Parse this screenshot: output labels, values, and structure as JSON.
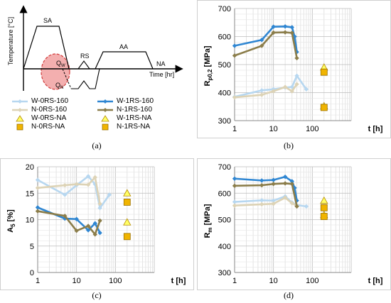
{
  "colors": {
    "W_RS160": "#b7d7f0",
    "W_RS1": "#2f86d2",
    "N_RS160": "#ddd3b6",
    "N_RS1": "#8b7d4a",
    "W_NA_marker": "#ffff66",
    "N_NA_marker": "#f0b400",
    "grid": "#d0d0d0",
    "zone": "#e96e6e"
  },
  "panel_a": {
    "caption": "(a)",
    "ylabel": "Temperature [°C]",
    "xlabel": "Time [hr]",
    "labels": {
      "SA": "SA",
      "RS": "RS",
      "AA": "AA",
      "NA": "NA",
      "Qw": "Q",
      "Qw_sub": "W",
      "QN": "Q",
      "QN_sub": "N"
    }
  },
  "legend": [
    {
      "label": "W-0RS-160",
      "key": "W_RS160",
      "kind": "line"
    },
    {
      "label": "W-1RS-160",
      "key": "W_RS1",
      "kind": "line"
    },
    {
      "label": "N-0RS-160",
      "key": "N_RS160",
      "kind": "line"
    },
    {
      "label": "N-1RS-160",
      "key": "N_RS1",
      "kind": "line"
    },
    {
      "label": "W-0RS-NA",
      "key": "W_NA_marker",
      "kind": "triangle"
    },
    {
      "label": "W-1RS-NA",
      "key": "W_NA_marker",
      "kind": "triangle"
    },
    {
      "label": "N-0RS-NA",
      "key": "N_NA_marker",
      "kind": "square"
    },
    {
      "label": "N-1RS-NA",
      "key": "N_NA_marker",
      "kind": "square"
    }
  ],
  "chart_data": [
    {
      "panel": "b",
      "caption": "(b)",
      "type": "line",
      "ylabel_main": "R",
      "ylabel_sub": "p0,2",
      "ylabel_unit": " [MPa]",
      "xlabel": "t [h]",
      "xscale": "log",
      "xlim": [
        1,
        1000
      ],
      "ylim": [
        300,
        700
      ],
      "xticks": [
        1,
        10,
        100
      ],
      "xtick_labels": [
        "1",
        "10",
        "100"
      ],
      "yticks": [
        300,
        400,
        500,
        600,
        700
      ],
      "ytick_labels": [
        "300",
        "400",
        "500",
        "600",
        "700"
      ],
      "series": [
        {
          "name": "W-0RS-160",
          "color_key": "W_RS160",
          "x": [
            1,
            5,
            10,
            20,
            30,
            40,
            70
          ],
          "y": [
            385,
            408,
            412,
            418,
            420,
            460,
            412
          ]
        },
        {
          "name": "W-1RS-160",
          "color_key": "W_RS1",
          "x": [
            1,
            5,
            10,
            20,
            30,
            35,
            40
          ],
          "y": [
            567,
            588,
            635,
            636,
            633,
            600,
            545
          ]
        },
        {
          "name": "N-0RS-160",
          "color_key": "N_RS160",
          "x": [
            1,
            5,
            10,
            20,
            30,
            40
          ],
          "y": [
            383,
            392,
            405,
            420,
            405,
            430
          ]
        },
        {
          "name": "N-1RS-160",
          "color_key": "N_RS1",
          "x": [
            1,
            5,
            10,
            20,
            30,
            40
          ],
          "y": [
            532,
            567,
            614,
            615,
            613,
            523
          ]
        }
      ],
      "na_points": [
        {
          "name": "W-0RS-NA",
          "shape": "triangle",
          "x": 200,
          "y": 490
        },
        {
          "name": "W-1RS-NA",
          "shape": "triangle",
          "x": 200,
          "y": 352
        },
        {
          "name": "N-0RS-NA",
          "shape": "square",
          "x": 200,
          "y": 473
        },
        {
          "name": "N-1RS-NA",
          "shape": "square",
          "x": 200,
          "y": 347
        }
      ]
    },
    {
      "panel": "c",
      "caption": "(c)",
      "type": "line",
      "ylabel_main": "A",
      "ylabel_sub": "5",
      "ylabel_unit": " [%]",
      "xlabel": "t [h]",
      "xscale": "log",
      "xlim": [
        1,
        1000
      ],
      "ylim": [
        0,
        20
      ],
      "xticks": [
        1,
        10,
        100
      ],
      "xtick_labels": [
        "1",
        "10",
        "100"
      ],
      "yticks": [
        0,
        5,
        10,
        15,
        20
      ],
      "ytick_labels": [
        "0",
        "5",
        "10",
        "15",
        "20"
      ],
      "series": [
        {
          "name": "W-0RS-160",
          "color_key": "W_RS160",
          "x": [
            1,
            5,
            10,
            20,
            30,
            40,
            70
          ],
          "y": [
            17.5,
            14.7,
            16.5,
            18.2,
            16.7,
            12.2,
            14.7
          ]
        },
        {
          "name": "W-1RS-160",
          "color_key": "W_RS1",
          "x": [
            1,
            5,
            10,
            20,
            30,
            40
          ],
          "y": [
            12.3,
            10.2,
            10.1,
            8.0,
            9.3,
            7.5
          ]
        },
        {
          "name": "N-0RS-160",
          "color_key": "N_RS160",
          "x": [
            1,
            5,
            10,
            20,
            30,
            40
          ],
          "y": [
            16.0,
            16.5,
            16.7,
            16.6,
            18.0,
            13.0
          ]
        },
        {
          "name": "N-1RS-160",
          "color_key": "N_RS1",
          "x": [
            1,
            5,
            10,
            20,
            30,
            40
          ],
          "y": [
            11.6,
            10.7,
            7.9,
            8.8,
            7.2,
            9.8
          ]
        }
      ],
      "na_points": [
        {
          "name": "W-0RS-NA",
          "shape": "triangle",
          "x": 200,
          "y": 15.0
        },
        {
          "name": "W-1RS-NA",
          "shape": "triangle",
          "x": 200,
          "y": 9.5
        },
        {
          "name": "N-0RS-NA",
          "shape": "square",
          "x": 200,
          "y": 13.3
        },
        {
          "name": "N-1RS-NA",
          "shape": "square",
          "x": 200,
          "y": 6.8
        }
      ]
    },
    {
      "panel": "d",
      "caption": "(d)",
      "type": "line",
      "ylabel_main": "R",
      "ylabel_sub": "m",
      "ylabel_unit": " [MPa]",
      "xlabel": "t [h]",
      "xscale": "log",
      "xlim": [
        1,
        1000
      ],
      "ylim": [
        300,
        700
      ],
      "xticks": [
        1,
        10,
        100
      ],
      "xtick_labels": [
        "1",
        "10",
        "100"
      ],
      "yticks": [
        300,
        400,
        500,
        600,
        700
      ],
      "ytick_labels": [
        "300",
        "400",
        "500",
        "600",
        "700"
      ],
      "series": [
        {
          "name": "W-0RS-160",
          "color_key": "W_RS160",
          "x": [
            1,
            5,
            10,
            20,
            30,
            40,
            70
          ],
          "y": [
            567,
            573,
            572,
            588,
            565,
            555,
            550
          ]
        },
        {
          "name": "W-1RS-160",
          "color_key": "W_RS1",
          "x": [
            1,
            5,
            10,
            20,
            30,
            35,
            40
          ],
          "y": [
            655,
            648,
            650,
            662,
            645,
            620,
            572
          ]
        },
        {
          "name": "N-0RS-160",
          "color_key": "N_RS160",
          "x": [
            1,
            5,
            10,
            20,
            30,
            40
          ],
          "y": [
            553,
            558,
            560,
            583,
            562,
            552
          ]
        },
        {
          "name": "N-1RS-160",
          "color_key": "N_RS1",
          "x": [
            1,
            5,
            10,
            20,
            30,
            40
          ],
          "y": [
            628,
            630,
            635,
            637,
            635,
            550
          ]
        }
      ],
      "na_points": [
        {
          "name": "W-0RS-NA",
          "shape": "triangle",
          "x": 200,
          "y": 572
        },
        {
          "name": "W-1RS-NA",
          "shape": "triangle",
          "x": 200,
          "y": 518
        },
        {
          "name": "N-0RS-NA",
          "shape": "square",
          "x": 200,
          "y": 545
        },
        {
          "name": "N-1RS-NA",
          "shape": "square",
          "x": 200,
          "y": 512
        }
      ]
    }
  ]
}
